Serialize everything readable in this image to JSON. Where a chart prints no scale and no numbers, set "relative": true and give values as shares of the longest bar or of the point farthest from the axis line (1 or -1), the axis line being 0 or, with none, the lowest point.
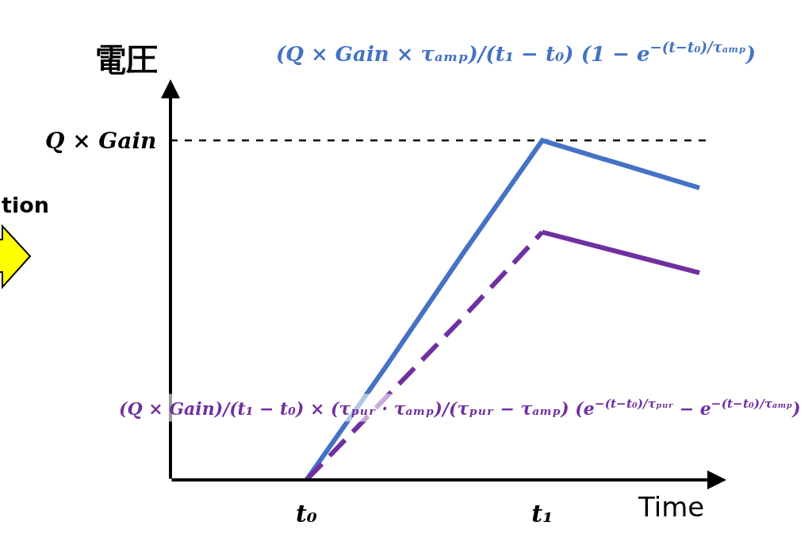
{
  "chart_data": {
    "type": "line",
    "relative": true,
    "ylabel": "電圧",
    "xlabel": "Time",
    "categories": [
      "t₀",
      null,
      null,
      "t₁",
      null,
      null
    ],
    "line_style": "solid",
    "legend": false,
    "series": [
      {
        "name": "(Q × Gain × τₐₘₚ)/(t₁ − t₀) (1 − e$^{−(t−t₀)/τₐₘₚ}$)",
        "color": "#4472c4",
        "values": [
          0,
          0.33,
          0.67,
          1,
          0.93,
          0.86
        ]
      },
      {
        "name": "(Q × Gain)/(t₁ − t₀) × (τₚᵤᵣ · τₐₘₚ)/(τₚᵤᵣ − τₐₘₚ) (e$^{−(t−t₀)/τₚᵤᵣ}$ − e$^{−(t−t₀)/τₐₘₚ}$)",
        "color": "#7030a0",
        "values": [
          0,
          0.24,
          0.48,
          0.73,
          null,
          null
        ],
        "line_style": "dashed"
      },
      {
        "color": "#7030a0",
        "values": [
          null,
          null,
          null,
          0.73,
          0.67,
          0.61
        ]
      }
    ],
    "ref_lines": [
      {
        "axis": "y",
        "value": 1,
        "label": "Q × Gain",
        "color": "#000000",
        "line_style": "dashed"
      }
    ],
    "annotations": [
      "tion"
    ]
  }
}
